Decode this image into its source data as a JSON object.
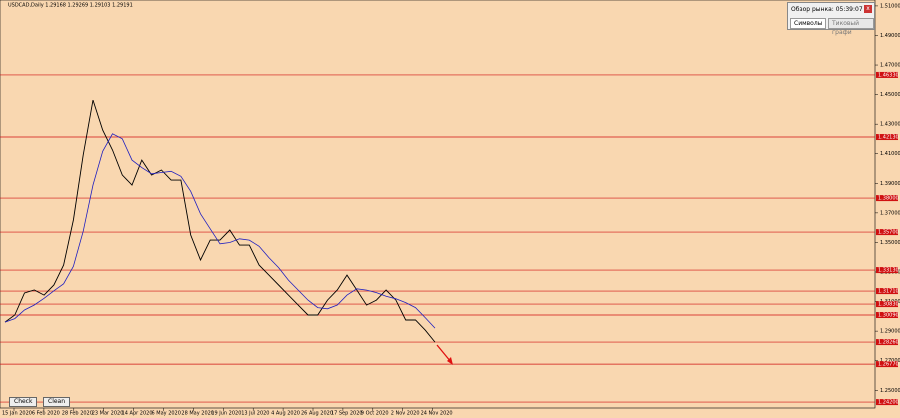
{
  "header": {
    "symbol": "USDCAD,Daily 1.29168 1.29269 1.29103 1.29191"
  },
  "market_watch": {
    "title": "Обзор рынка: 05:39:07",
    "tabs": [
      "Символы",
      "Тиковый графи"
    ]
  },
  "buttons": [
    "Check",
    "Clean"
  ],
  "price_scale": {
    "range": [
      1.238,
      1.514
    ],
    "ticks": [
      {
        "value": 1.51,
        "label": "1.51000"
      },
      {
        "value": 1.49,
        "label": "1.49000"
      },
      {
        "value": 1.47,
        "label": "1.47000"
      },
      {
        "value": 1.45,
        "label": "1.45000"
      },
      {
        "value": 1.43,
        "label": "1.43000"
      },
      {
        "value": 1.41,
        "label": "1.41000"
      },
      {
        "value": 1.39,
        "label": "1.39000"
      },
      {
        "value": 1.37,
        "label": "1.37000"
      },
      {
        "value": 1.35,
        "label": "1.35000"
      },
      {
        "value": 1.33,
        "label": "1.33000"
      },
      {
        "value": 1.31,
        "label": "1.31000"
      },
      {
        "value": 1.29,
        "label": "1.29000"
      },
      {
        "value": 1.27,
        "label": "1.27000"
      },
      {
        "value": 1.25,
        "label": "1.25000"
      }
    ],
    "levels": [
      {
        "value": 1.4633,
        "label": "1.46330"
      },
      {
        "value": 1.4213,
        "label": "1.42130"
      },
      {
        "value": 1.38,
        "label": "1.38000"
      },
      {
        "value": 1.357,
        "label": "1.35700"
      },
      {
        "value": 1.3313,
        "label": "1.33130"
      },
      {
        "value": 1.3171,
        "label": "1.31710"
      },
      {
        "value": 1.3083,
        "label": "1.30830"
      },
      {
        "value": 1.3009,
        "label": "1.30090"
      },
      {
        "value": 1.2826,
        "label": "1.28260"
      },
      {
        "value": 1.2677,
        "label": "1.26770"
      },
      {
        "value": 1.242,
        "label": "1.24200"
      }
    ]
  },
  "dates": [
    "15 Jan 2020",
    "6 Feb 2020",
    "28 Feb 2020",
    "23 Mar 2020",
    "14 Apr 2020",
    "6 May 2020",
    "28 May 2020",
    "19 Jun 2020",
    "13 Jul 2020",
    "4 Aug 2020",
    "26 Aug 2020",
    "17 Sep 2020",
    "9 Oct 2020",
    "2 Nov 2020",
    "24 Nov 2020"
  ],
  "closes": [
    1.2961,
    1.3009,
    1.3158,
    1.3178,
    1.3144,
    1.3212,
    1.3347,
    1.3652,
    1.4091,
    1.4463,
    1.426,
    1.4125,
    1.3956,
    1.3888,
    1.4057,
    1.3956,
    1.399,
    1.3922,
    1.3922,
    1.355,
    1.3381,
    1.3516,
    1.3516,
    1.3584,
    1.3482,
    1.3482,
    1.3347,
    1.3279,
    1.3212,
    1.3144,
    1.3076,
    1.3009,
    1.3009,
    1.311,
    1.3178,
    1.3279,
    1.3178,
    1.3076,
    1.311,
    1.3178,
    1.311,
    1.2975,
    1.2975,
    1.2907,
    1.2826
  ]
}
